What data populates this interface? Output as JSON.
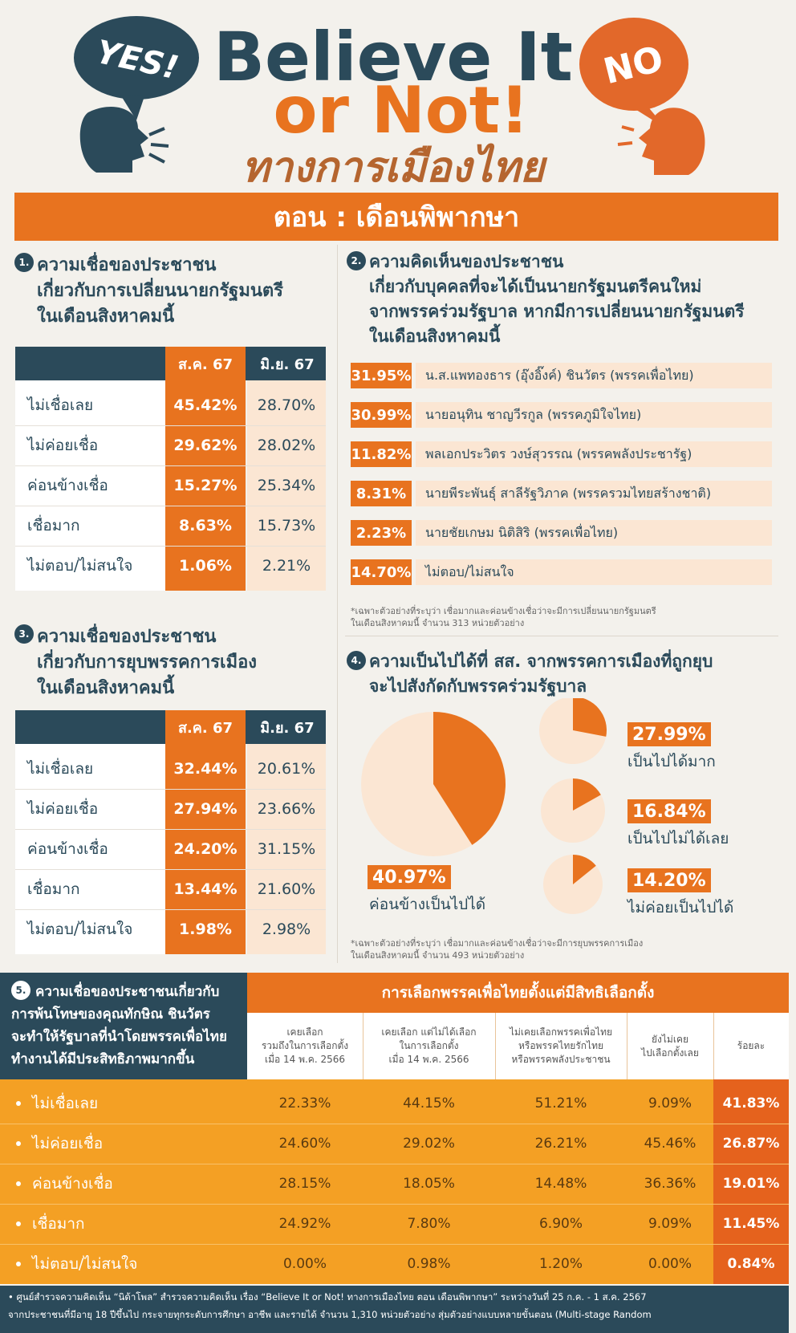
{
  "header": {
    "yes": "YES!",
    "no": "NO",
    "title_line1": "Believe It",
    "title_line2": "or Not!",
    "subtitle": "ทางการเมืองไทย",
    "banner": "ตอน : เดือนพิพากษา"
  },
  "section1": {
    "number": "1.",
    "title_lines": [
      "ความเชื่อของประชาชน",
      "เกี่ยวกับการเปลี่ยนนายกรัฐมนตรี",
      "ในเดือนสิงหาคมนี้"
    ],
    "columns": [
      "ส.ค. 67",
      "มิ.ย. 67"
    ],
    "rows": [
      [
        "ไม่เชื่อเลย",
        "45.42%",
        "28.70%"
      ],
      [
        "ไม่ค่อยเชื่อ",
        "29.62%",
        "28.02%"
      ],
      [
        "ค่อนข้างเชื่อ",
        "15.27%",
        "25.34%"
      ],
      [
        "เชื่อมาก",
        "8.63%",
        "15.73%"
      ],
      [
        "ไม่ตอบ/ไม่สนใจ",
        "1.06%",
        "2.21%"
      ]
    ]
  },
  "section2": {
    "number": "2.",
    "title_lines": [
      "ความคิดเห็นของประชาชน",
      "เกี่ยวกับบุคคลที่จะได้เป็นนายกรัฐมนตรีคนใหม่",
      "จากพรรคร่วมรัฐบาล หากมีการเปลี่ยนนายกรัฐมนตรี",
      "ในเดือนสิงหาคมนี้"
    ],
    "items": [
      [
        "31.95%",
        "น.ส.แพทองธาร (อุ๊งอิ๊งค์) ชินวัตร (พรรคเพื่อไทย)"
      ],
      [
        "30.99%",
        "นายอนุทิน ชาญวีรกูล (พรรคภูมิใจไทย)"
      ],
      [
        "11.82%",
        "พลเอกประวิตร วงษ์สุวรรณ (พรรคพลังประชารัฐ)"
      ],
      [
        "8.31%",
        "นายพีระพันธุ์ สาลีรัฐวิภาค (พรรครวมไทยสร้างชาติ)"
      ],
      [
        "2.23%",
        "นายชัยเกษม นิติสิริ (พรรคเพื่อไทย)"
      ],
      [
        "14.70%",
        "ไม่ตอบ/ไม่สนใจ"
      ]
    ],
    "note_lines": [
      "*เฉพาะตัวอย่างที่ระบุว่า เชื่อมากและค่อนข้างเชื่อว่าจะมีการเปลี่ยนนายกรัฐมนตรี",
      "ในเดือนสิงหาคมนี้ จำนวน 313 หน่วยตัวอย่าง"
    ]
  },
  "section3": {
    "number": "3.",
    "title_lines": [
      "ความเชื่อของประชาชน",
      "เกี่ยวกับการยุบพรรคการเมือง",
      "ในเดือนสิงหาคมนี้"
    ],
    "columns": [
      "ส.ค. 67",
      "มิ.ย. 67"
    ],
    "rows": [
      [
        "ไม่เชื่อเลย",
        "32.44%",
        "20.61%"
      ],
      [
        "ไม่ค่อยเชื่อ",
        "27.94%",
        "23.66%"
      ],
      [
        "ค่อนข้างเชื่อ",
        "24.20%",
        "31.15%"
      ],
      [
        "เชื่อมาก",
        "13.44%",
        "21.60%"
      ],
      [
        "ไม่ตอบ/ไม่สนใจ",
        "1.98%",
        "2.98%"
      ]
    ]
  },
  "section4": {
    "number": "4.",
    "title_lines": [
      "ความเป็นไปได้ที่ สส. จากพรรคการเมืองที่ถูกยุบ",
      "จะไปสังกัดกับพรรคร่วมรัฐบาล"
    ],
    "items": [
      {
        "value": 40.97,
        "label": "40.97%",
        "caption": "ค่อนข้างเป็นไปได้"
      },
      {
        "value": 27.99,
        "label": "27.99%",
        "caption": "เป็นไปได้มาก"
      },
      {
        "value": 16.84,
        "label": "16.84%",
        "caption": "เป็นไปไม่ได้เลย"
      },
      {
        "value": 14.2,
        "label": "14.20%",
        "caption": "ไม่ค่อยเป็นไปได้"
      }
    ],
    "note_lines": [
      "*เฉพาะตัวอย่างที่ระบุว่า เชื่อมากและค่อนข้างเชื่อว่าจะมีการยุบพรรคการเมือง",
      "ในเดือนสิงหาคมนี้ จำนวน 493 หน่วยตัวอย่าง"
    ]
  },
  "section5": {
    "number": "5.",
    "title_lines": [
      "ความเชื่อของประชาชนเกี่ยวกับ",
      "การพ้นโทษของคุณทักษิณ ชินวัตร",
      "จะทำให้รัฐบาลที่นำโดยพรรคเพื่อไทย",
      "ทำงานได้มีประสิทธิภาพมากขึ้น"
    ],
    "group_header": "การเลือกพรรคเพื่อไทยตั้งแต่มีสิทธิเลือกตั้ง",
    "columns": [
      [
        "เคยเลือก",
        "รวมถึงในการเลือกตั้ง",
        "เมื่อ 14 พ.ค. 2566"
      ],
      [
        "เคยเลือก แต่ไม่ได้เลือก",
        "ในการเลือกตั้ง",
        "เมื่อ 14 พ.ค. 2566"
      ],
      [
        "ไม่เคยเลือกพรรคเพื่อไทย",
        "หรือพรรคไทยรักไทย",
        "หรือพรรคพลังประชาชน"
      ],
      [
        "ยังไม่เคย",
        "ไปเลือกตั้งเลย"
      ],
      [
        "ร้อยละ"
      ]
    ],
    "rows": [
      [
        "ไม่เชื่อเลย",
        "22.33%",
        "44.15%",
        "51.21%",
        "9.09%",
        "41.83%"
      ],
      [
        "ไม่ค่อยเชื่อ",
        "24.60%",
        "29.02%",
        "26.21%",
        "45.46%",
        "26.87%"
      ],
      [
        "ค่อนข้างเชื่อ",
        "28.15%",
        "18.05%",
        "14.48%",
        "36.36%",
        "19.01%"
      ],
      [
        "เชื่อมาก",
        "24.92%",
        "7.80%",
        "6.90%",
        "9.09%",
        "11.45%"
      ],
      [
        "ไม่ตอบ/ไม่สนใจ",
        "0.00%",
        "0.98%",
        "1.20%",
        "0.00%",
        "0.84%"
      ]
    ]
  },
  "footer": {
    "lines": [
      "• ศูนย์สำรวจความคิดเห็น “นิด้าโพล” สำรวจความคิดเห็น เรื่อง “Believe It or Not! ทางการเมืองไทย ตอน เดือนพิพากษา” ระหว่างวันที่ 25 ก.ค. - 1 ส.ค. 2567",
      "จากประชาชนที่มีอายุ 18 ปีขึ้นไป กระจายทุกระดับการศึกษา อาชีพ และรายได้ จำนวน 1,310 หน่วยตัวอย่าง สุ่มตัวอย่างแบบหลายขั้นตอน (Multi-stage Random"
    ]
  }
}
